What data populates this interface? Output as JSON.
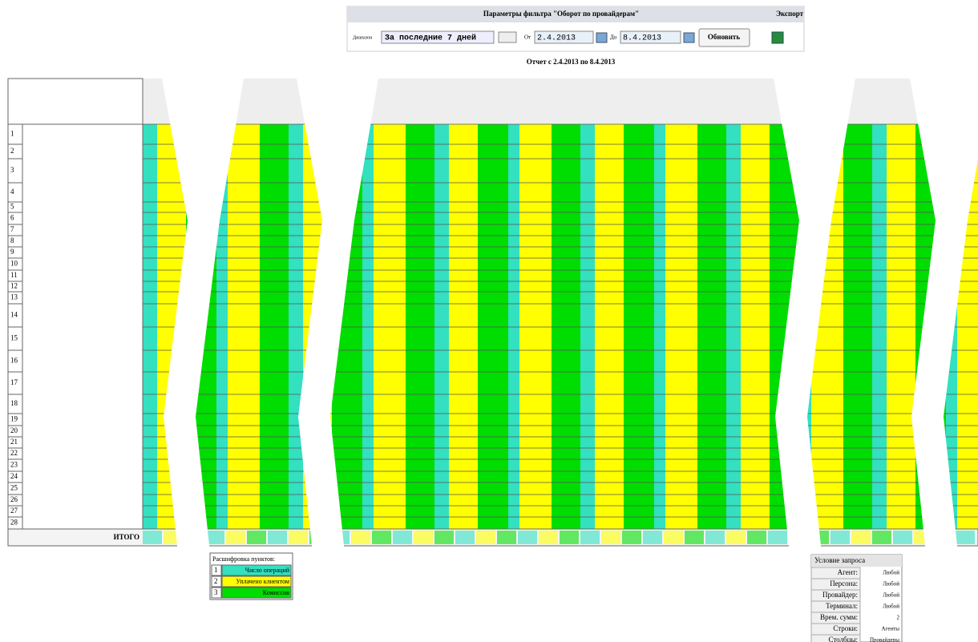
{
  "filter": {
    "title": "Параметры фильтра \"Оборот по провайдерам\"",
    "export": "Экспорт",
    "range_label": "Диапазон",
    "range_value": "За последние 7 дней",
    "from_label": "От",
    "from_value": "2.4.2013",
    "to_label": "До",
    "to_value": "8.4.2013",
    "refresh": "Обновить"
  },
  "report_title": "Отчет с 2.4.2013 по 8.4.2013",
  "table": {
    "row_numbers": [
      1,
      2,
      3,
      4,
      5,
      6,
      7,
      8,
      9,
      10,
      11,
      12,
      13,
      14,
      15,
      16,
      17,
      18,
      19,
      20,
      21,
      22,
      23,
      24,
      25,
      26,
      27,
      28
    ],
    "total_label": "ИТОГО"
  },
  "legend": {
    "title": "Расшифровка пунктов:",
    "items": [
      {
        "number": 1,
        "label": "Число операций",
        "color": "#33e0c0"
      },
      {
        "number": 2,
        "label": "Уплачено клиентом",
        "color": "#ffff00"
      },
      {
        "number": 3,
        "label": "Комиссия",
        "color": "#00dd00"
      }
    ]
  },
  "conditions": {
    "title": "Условие запроса",
    "rows": [
      [
        "Агент:",
        "Любой"
      ],
      [
        "Персона:",
        "Любой"
      ],
      [
        "Провайдер:",
        "Любой"
      ],
      [
        "Терминал:",
        "Любой"
      ],
      [
        "Врем. сумм:",
        "2"
      ],
      [
        "Строки:",
        "Агенты"
      ],
      [
        "Столбцы:",
        "Провайдеры"
      ]
    ]
  }
}
